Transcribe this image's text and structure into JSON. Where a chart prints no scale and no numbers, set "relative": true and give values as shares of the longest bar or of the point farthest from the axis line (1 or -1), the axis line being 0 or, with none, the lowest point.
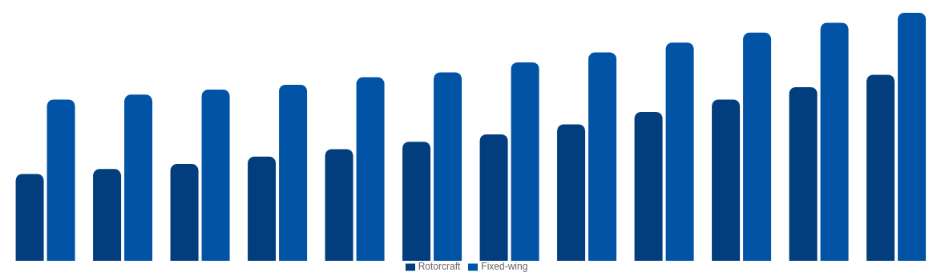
{
  "chart_data": {
    "type": "bar",
    "relative": true,
    "categories": [
      null,
      null,
      null,
      null,
      null,
      null,
      null,
      null,
      null,
      null,
      null,
      null
    ],
    "series": [
      {
        "name": "Rotorcraft",
        "color": "#023e7d",
        "values": [
          0.35,
          0.37,
          0.39,
          0.42,
          0.45,
          0.48,
          0.51,
          0.55,
          0.6,
          0.65,
          0.7,
          0.75
        ]
      },
      {
        "name": "Fixed-wing",
        "color": "#0153a5",
        "values": [
          0.65,
          0.67,
          0.69,
          0.71,
          0.74,
          0.76,
          0.8,
          0.84,
          0.88,
          0.92,
          0.96,
          1
        ]
      }
    ],
    "legend": "bottom",
    "grid": false
  }
}
